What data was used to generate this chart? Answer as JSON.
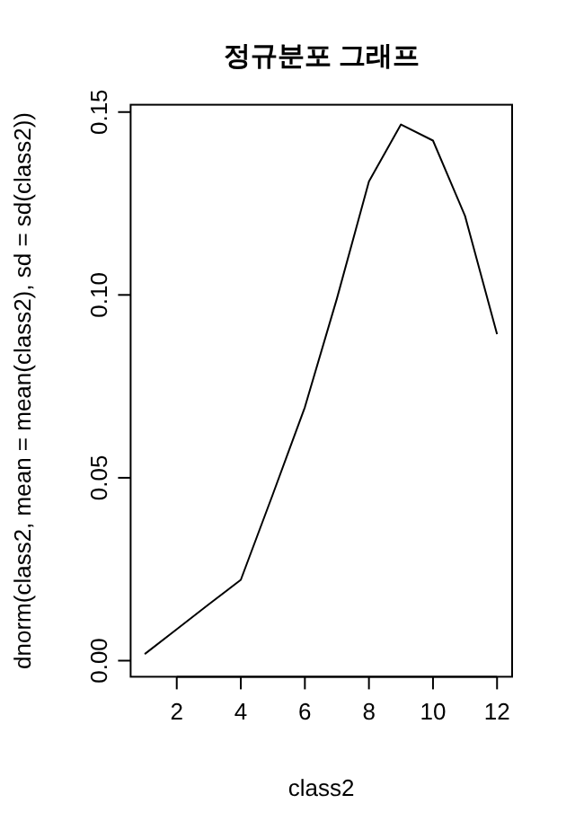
{
  "chart_data": {
    "type": "line",
    "title": "정규분포 그래프",
    "xlabel": "class2",
    "ylabel": "dnorm(class2, mean = mean(class2), sd = sd(class2))",
    "x": [
      1,
      2,
      3,
      4,
      5,
      6,
      7,
      8,
      9,
      10,
      11,
      12
    ],
    "values": [
      0.0018,
      0.0086,
      0.0154,
      0.0221,
      0.0455,
      0.0693,
      0.099,
      0.131,
      0.1466,
      0.1422,
      0.1216,
      0.0893
    ],
    "color": "#000000",
    "marker": "none",
    "line_style": "solid",
    "xlim": [
      0.56,
      12.47
    ],
    "ylim": [
      -0.0044,
      0.152
    ],
    "xticks": [
      2,
      4,
      6,
      8,
      10,
      12
    ],
    "yticks": [
      {
        "value": 0,
        "label": "0.00"
      },
      {
        "value": 0.05,
        "label": "0.05"
      },
      {
        "value": 0.1,
        "label": "0.10"
      },
      {
        "value": 0.15,
        "label": "0.15"
      }
    ]
  }
}
